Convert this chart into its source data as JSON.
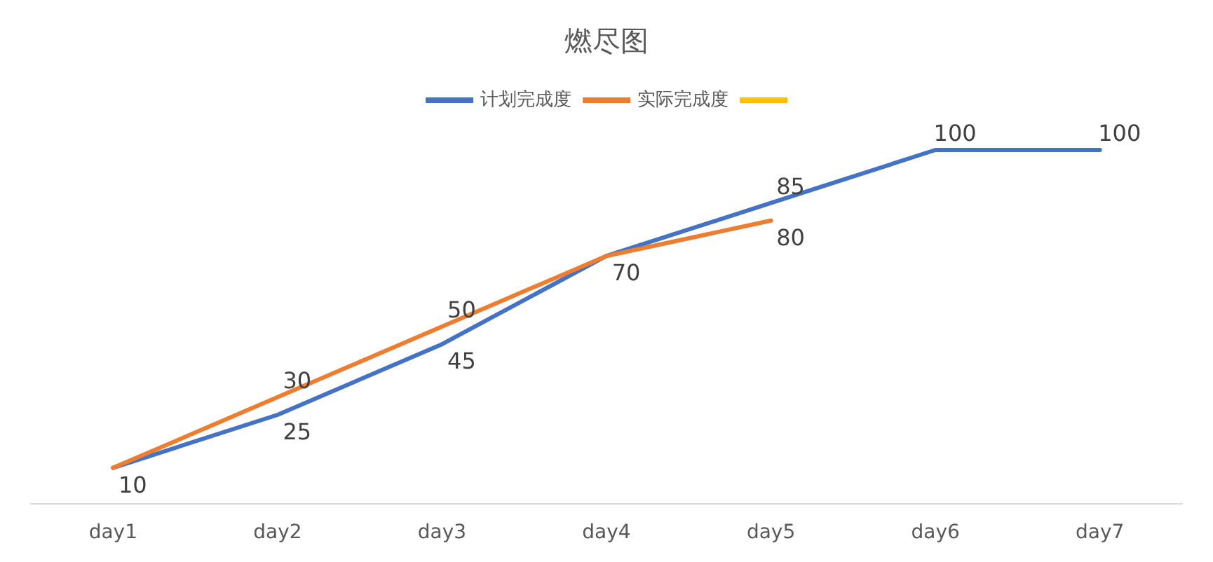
{
  "chart_data": {
    "type": "line",
    "title": "燃尽图",
    "categories": [
      "day1",
      "day2",
      "day3",
      "day4",
      "day5",
      "day6",
      "day7"
    ],
    "series": [
      {
        "name": "计划完成度",
        "color": "#4472c4",
        "values": [
          10,
          25,
          45,
          70,
          85,
          100,
          100
        ],
        "value_labels": [
          "10",
          "25",
          "45",
          "70",
          "85",
          "100",
          "100"
        ]
      },
      {
        "name": "实际完成度",
        "color": "#ed7d31",
        "values": [
          10,
          30,
          50,
          70,
          80,
          null,
          null
        ],
        "value_labels": [
          null,
          "30",
          "50",
          null,
          "80",
          null,
          null
        ]
      },
      {
        "color": "#ffc000",
        "values": [
          null,
          null,
          null,
          null,
          null,
          null,
          null
        ]
      }
    ],
    "tick_labels": "x",
    "legend": "top",
    "marker": "none"
  }
}
